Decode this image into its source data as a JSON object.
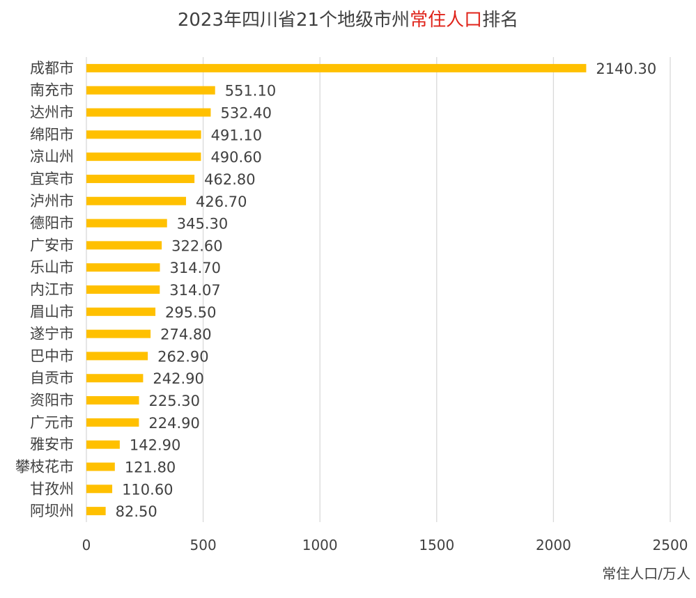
{
  "title": {
    "prefix": "2023年四川省21个地级市州",
    "highlight": "常住人口",
    "suffix": "排名",
    "highlight_color": "#e0241b"
  },
  "colors": {
    "bar": "#ffc000",
    "text": "#404040",
    "grid": "#d9d9d9"
  },
  "chart_data": {
    "type": "bar",
    "orientation": "horizontal",
    "title": "2023年四川省21个地级市州常住人口排名",
    "xlabel": "常住人口/万人",
    "ylabel": "",
    "xlim": [
      0,
      2500
    ],
    "xticks": [
      0,
      500,
      1000,
      1500,
      2000,
      2500
    ],
    "grid": true,
    "categories": [
      "成都市",
      "南充市",
      "达州市",
      "绵阳市",
      "凉山州",
      "宜宾市",
      "泸州市",
      "德阳市",
      "广安市",
      "乐山市",
      "内江市",
      "眉山市",
      "遂宁市",
      "巴中市",
      "自贡市",
      "资阳市",
      "广元市",
      "雅安市",
      "攀枝花市",
      "甘孜州",
      "阿坝州"
    ],
    "values": [
      2140.3,
      551.1,
      532.4,
      491.1,
      490.6,
      462.8,
      426.7,
      345.3,
      322.6,
      314.7,
      314.07,
      295.5,
      274.8,
      262.9,
      242.9,
      225.3,
      224.9,
      142.9,
      121.8,
      110.6,
      82.5
    ],
    "value_labels": [
      "2140.30",
      "551.10",
      "532.40",
      "491.10",
      "490.60",
      "462.80",
      "426.70",
      "345.30",
      "322.60",
      "314.70",
      "314.07",
      "295.50",
      "274.80",
      "262.90",
      "242.90",
      "225.30",
      "224.90",
      "142.90",
      "121.80",
      "110.60",
      "82.50"
    ]
  }
}
